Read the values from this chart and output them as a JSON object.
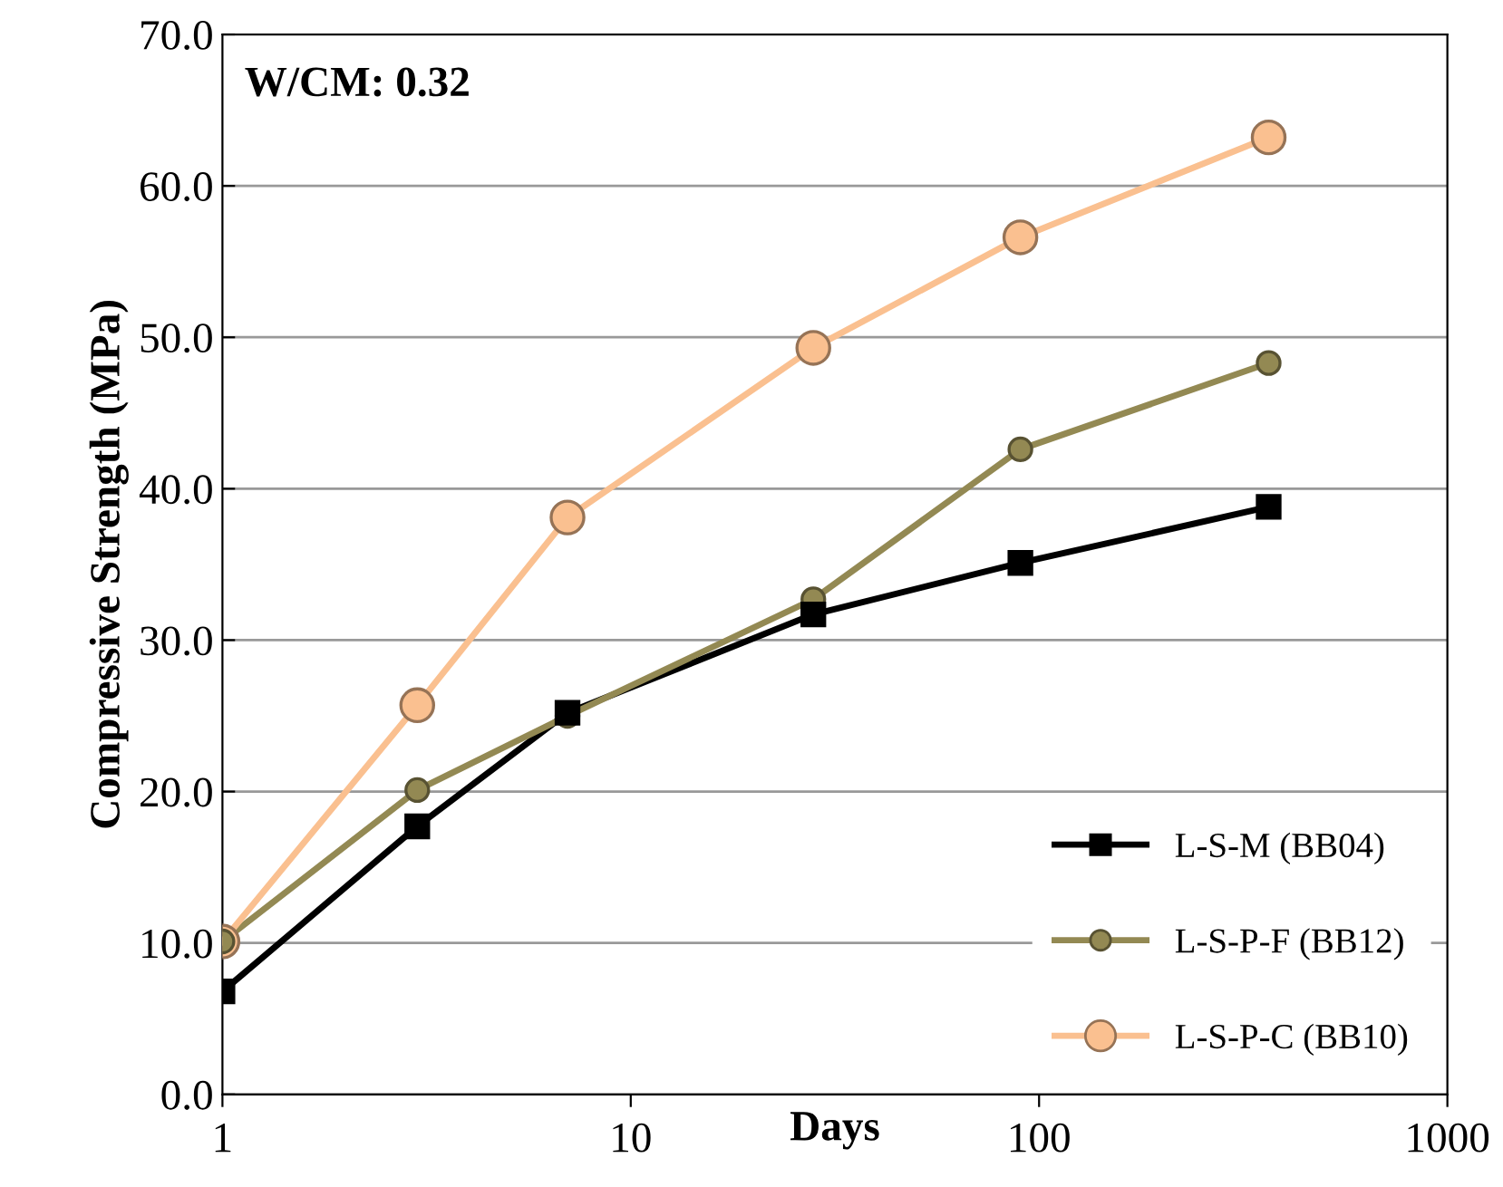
{
  "chart_data": {
    "type": "line",
    "xlabel": "Days",
    "ylabel": "Compressive Strength (MPa)",
    "annotations": [
      "W/CM: 0.32"
    ],
    "x": [
      1,
      3,
      7,
      28,
      90,
      365
    ],
    "series": [
      {
        "name": "L-S-M (BB04)",
        "color": "#000000",
        "marker": "square",
        "values": [
          6.8,
          17.7,
          25.2,
          31.7,
          35.1,
          38.8
        ]
      },
      {
        "name": "L-S-P-F (BB12)",
        "color": "#938953",
        "marker": "circle",
        "values": [
          10.1,
          20.1,
          25.0,
          32.7,
          42.6,
          48.3
        ]
      },
      {
        "name": "L-S-P-C (BB10)",
        "color": "#fac090",
        "marker": "circle",
        "values": [
          10.1,
          25.7,
          38.1,
          49.3,
          56.6,
          63.2
        ]
      }
    ],
    "log": "x",
    "xlim": [
      1,
      1000
    ],
    "xticks": [
      1,
      10,
      100,
      1000
    ],
    "ylim": [
      0,
      70
    ],
    "yticks": [
      {
        "value": 0,
        "label": "0.0"
      },
      {
        "value": 10,
        "label": "10.0"
      },
      {
        "value": 20,
        "label": "20.0"
      },
      {
        "value": 30,
        "label": "30.0"
      },
      {
        "value": 40,
        "label": "40.0"
      },
      {
        "value": 50,
        "label": "50.0"
      },
      {
        "value": 60,
        "label": "60.0"
      },
      {
        "value": 70,
        "label": "70.0"
      }
    ],
    "grid": "y",
    "legend": "bottom right",
    "line_style": "solid"
  }
}
